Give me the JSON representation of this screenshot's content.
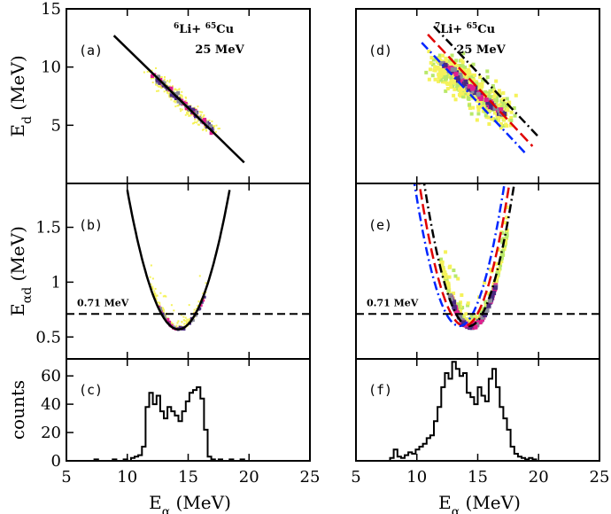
{
  "chart_data": [
    {
      "id": "a",
      "type": "scatter",
      "panel_label": "(a)",
      "title": "",
      "reaction_line1": "6Li+ 65Cu",
      "reaction_iso_a": "6",
      "reaction_el_a": "Li+ ",
      "reaction_iso_b": "65",
      "reaction_el_b": "Cu",
      "reaction_line2": "25 MeV",
      "ylabel_main": "E",
      "ylabel_sub": "d",
      "ylabel_unit": " (MeV)",
      "xlim": [
        5,
        25
      ],
      "ylim": [
        0,
        15
      ],
      "yticks": [
        5,
        10,
        15
      ],
      "lines": [
        {
          "name": "kinematic",
          "color": "#000000",
          "dash": "",
          "x": [
            8.9,
            19.6
          ],
          "y": [
            12.7,
            1.8
          ]
        }
      ],
      "density_ridge": {
        "x": [
          12.0,
          17.0
        ],
        "y": [
          9.4,
          4.6
        ]
      }
    },
    {
      "id": "b",
      "type": "scatter",
      "panel_label": "(b)",
      "ylabel_main": "E",
      "ylabel_sub": "αd",
      "ylabel_unit": " (MeV)",
      "xlim": [
        5,
        25
      ],
      "ylim": [
        0.3,
        1.9
      ],
      "yticks": [
        0.5,
        1,
        1.5
      ],
      "threshold": {
        "value": 0.71,
        "label": "0.71 MeV"
      },
      "lines": [
        {
          "name": "parabola",
          "color": "#000000",
          "dash": "",
          "vertex": [
            14.2,
            0.57
          ],
          "k": 0.072,
          "xrange": [
            10.0,
            18.4
          ]
        }
      ]
    },
    {
      "id": "c",
      "type": "line",
      "panel_label": "(c)",
      "ylabel": "counts",
      "xlabel_main": "E",
      "xlabel_sub": "α",
      "xlabel_unit": " (MeV)",
      "xlim": [
        5,
        25
      ],
      "ylim": [
        0,
        72
      ],
      "yticks": [
        0,
        20,
        40,
        60
      ],
      "xticks": [
        5,
        10,
        15,
        20,
        25
      ],
      "histogram": {
        "x": [
          7.0,
          7.3,
          7.6,
          7.9,
          8.2,
          8.5,
          8.8,
          9.1,
          9.4,
          9.7,
          10.0,
          10.3,
          10.6,
          10.9,
          11.2,
          11.5,
          11.8,
          12.1,
          12.4,
          12.7,
          13.0,
          13.3,
          13.6,
          13.9,
          14.2,
          14.5,
          14.8,
          15.1,
          15.4,
          15.7,
          16.0,
          16.3,
          16.6,
          16.9,
          17.2,
          17.5,
          17.8,
          18.1,
          18.4,
          18.7,
          19.0,
          19.3,
          19.6,
          19.9
        ],
        "y": [
          0,
          1,
          0,
          0,
          0,
          0,
          1,
          0,
          0,
          1,
          0,
          2,
          3,
          4,
          10,
          38,
          48,
          40,
          46,
          35,
          30,
          38,
          35,
          32,
          28,
          35,
          42,
          48,
          50,
          52,
          44,
          22,
          3,
          1,
          0,
          1,
          0,
          0,
          1,
          0,
          0,
          1,
          0,
          0
        ]
      }
    },
    {
      "id": "d",
      "type": "scatter",
      "panel_label": "(d)",
      "reaction_line1": "7Li+ 65Cu",
      "reaction_iso_a": "7",
      "reaction_el_a": "Li+ ",
      "reaction_iso_b": "65",
      "reaction_el_b": "Cu",
      "reaction_line2": "25 MeV",
      "xlim": [
        5,
        25
      ],
      "ylim": [
        0,
        15
      ],
      "lines": [
        {
          "name": "black",
          "color": "#000000",
          "dash": "10,4,2,4",
          "x": [
            11.4,
            20.0
          ],
          "y": [
            13.5,
            4.0
          ]
        },
        {
          "name": "red",
          "color": "#e00000",
          "dash": "12,5",
          "x": [
            10.9,
            19.5
          ],
          "y": [
            12.8,
            3.2
          ]
        },
        {
          "name": "blue",
          "color": "#0026ff",
          "dash": "10,4,2,4",
          "x": [
            10.4,
            19.0
          ],
          "y": [
            12.1,
            2.5
          ]
        }
      ],
      "density_ridge": {
        "x": [
          12.0,
          17.0
        ],
        "y": [
          10.5,
          6.0
        ]
      }
    },
    {
      "id": "e",
      "type": "scatter",
      "panel_label": "(e)",
      "xlim": [
        5,
        25
      ],
      "ylim": [
        0.3,
        1.9
      ],
      "threshold": {
        "value": 0.71,
        "label": "0.71 MeV"
      },
      "lines": [
        {
          "name": "black",
          "color": "#000000",
          "dash": "10,4,2,4",
          "vertex": [
            14.3,
            0.6
          ],
          "k": 0.095,
          "xrange": [
            10.3,
            19.2
          ]
        },
        {
          "name": "red",
          "color": "#e00000",
          "dash": "12,5",
          "vertex": [
            13.9,
            0.6
          ],
          "k": 0.095,
          "xrange": [
            9.9,
            18.1
          ]
        },
        {
          "name": "blue",
          "color": "#0026ff",
          "dash": "10,4,2,4",
          "vertex": [
            13.5,
            0.6
          ],
          "k": 0.095,
          "xrange": [
            9.3,
            17.4
          ]
        }
      ]
    },
    {
      "id": "f",
      "type": "line",
      "panel_label": "(f)",
      "xlabel_main": "E",
      "xlabel_sub": "α",
      "xlabel_unit": " (MeV)",
      "xlim": [
        5,
        25
      ],
      "ylim": [
        0,
        72
      ],
      "xticks": [
        5,
        10,
        15,
        20,
        25
      ],
      "histogram": {
        "x": [
          7.5,
          7.8,
          8.1,
          8.4,
          8.7,
          9.0,
          9.3,
          9.6,
          9.9,
          10.2,
          10.5,
          10.8,
          11.1,
          11.4,
          11.7,
          12.0,
          12.3,
          12.6,
          12.9,
          13.2,
          13.5,
          13.8,
          14.1,
          14.4,
          14.7,
          15.0,
          15.3,
          15.6,
          15.9,
          16.2,
          16.5,
          16.8,
          17.1,
          17.4,
          17.7,
          18.0,
          18.3,
          18.6,
          18.9,
          19.2,
          19.5,
          19.8,
          20.1
        ],
        "y": [
          0,
          2,
          8,
          3,
          2,
          4,
          6,
          5,
          8,
          10,
          12,
          16,
          18,
          28,
          38,
          52,
          62,
          58,
          70,
          65,
          60,
          62,
          48,
          45,
          40,
          52,
          46,
          42,
          58,
          65,
          52,
          38,
          30,
          22,
          10,
          5,
          3,
          2,
          1,
          2,
          1,
          0,
          0
        ]
      }
    }
  ],
  "colors": {
    "frame": "#000000",
    "scatter_yellow": "#f5f25a",
    "scatter_green": "#b8e86a",
    "ridge_magenta": "#e0208e",
    "ridge_purple": "#4b2a82",
    "ridge_grey": "#8a8a9a"
  }
}
